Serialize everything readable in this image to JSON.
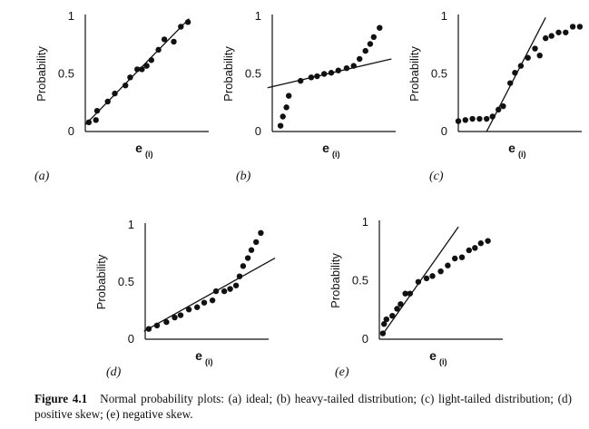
{
  "figure_caption": {
    "label": "Figure 4.1",
    "text": "Normal probability plots: (a) ideal; (b) heavy-tailed distribution; (c) light-tailed distribution; (d) positive skew; (e) negative skew."
  },
  "chart_data": [
    {
      "type": "scatter",
      "panel_label": "(a)",
      "ylabel": "Probability",
      "xlabel": "e",
      "xlabel_subscript": "(i)",
      "y_ticks": [
        "0",
        "0.5",
        "1"
      ],
      "ylim": [
        0,
        1
      ],
      "xlim": [
        0,
        1
      ],
      "points": [
        [
          0.03,
          0.08
        ],
        [
          0.09,
          0.1
        ],
        [
          0.1,
          0.18
        ],
        [
          0.19,
          0.26
        ],
        [
          0.25,
          0.33
        ],
        [
          0.34,
          0.4
        ],
        [
          0.38,
          0.47
        ],
        [
          0.44,
          0.54
        ],
        [
          0.48,
          0.54
        ],
        [
          0.52,
          0.57
        ],
        [
          0.56,
          0.62
        ],
        [
          0.62,
          0.71
        ],
        [
          0.67,
          0.8
        ],
        [
          0.75,
          0.78
        ],
        [
          0.81,
          0.91
        ],
        [
          0.87,
          0.95
        ]
      ],
      "line": [
        [
          0.0,
          0.06
        ],
        [
          0.88,
          0.98
        ]
      ]
    },
    {
      "type": "scatter",
      "panel_label": "(b)",
      "ylabel": "Probability",
      "xlabel": "e",
      "xlabel_subscript": "(i)",
      "y_ticks": [
        "0",
        "0.5",
        "1"
      ],
      "ylim": [
        0,
        1
      ],
      "xlim": [
        0,
        1
      ],
      "points": [
        [
          0.07,
          0.05
        ],
        [
          0.09,
          0.13
        ],
        [
          0.12,
          0.21
        ],
        [
          0.14,
          0.31
        ],
        [
          0.24,
          0.44
        ],
        [
          0.33,
          0.47
        ],
        [
          0.38,
          0.48
        ],
        [
          0.44,
          0.5
        ],
        [
          0.5,
          0.51
        ],
        [
          0.56,
          0.53
        ],
        [
          0.63,
          0.55
        ],
        [
          0.69,
          0.57
        ],
        [
          0.74,
          0.63
        ],
        [
          0.79,
          0.7
        ],
        [
          0.83,
          0.76
        ],
        [
          0.86,
          0.82
        ],
        [
          0.91,
          0.9
        ]
      ],
      "line": [
        [
          -0.04,
          0.38
        ],
        [
          1.01,
          0.63
        ]
      ]
    },
    {
      "type": "scatter",
      "panel_label": "(c)",
      "ylabel": "Probability",
      "xlabel": "e",
      "xlabel_subscript": "(i)",
      "y_ticks": [
        "0",
        "0.5",
        "1"
      ],
      "ylim": [
        0,
        1
      ],
      "xlim": [
        0,
        1
      ],
      "points": [
        [
          0.0,
          0.09
        ],
        [
          0.06,
          0.1
        ],
        [
          0.12,
          0.11
        ],
        [
          0.18,
          0.11
        ],
        [
          0.24,
          0.11
        ],
        [
          0.29,
          0.13
        ],
        [
          0.34,
          0.19
        ],
        [
          0.38,
          0.22
        ],
        [
          0.44,
          0.42
        ],
        [
          0.48,
          0.51
        ],
        [
          0.53,
          0.57
        ],
        [
          0.59,
          0.64
        ],
        [
          0.65,
          0.72
        ],
        [
          0.69,
          0.66
        ],
        [
          0.74,
          0.81
        ],
        [
          0.79,
          0.83
        ],
        [
          0.85,
          0.86
        ],
        [
          0.91,
          0.86
        ],
        [
          0.97,
          0.91
        ],
        [
          1.03,
          0.91
        ]
      ],
      "line": [
        [
          0.24,
          0.0
        ],
        [
          0.74,
          0.99
        ]
      ]
    },
    {
      "type": "scatter",
      "panel_label": "(d)",
      "ylabel": "Probability",
      "xlabel": "e",
      "xlabel_subscript": "(i)",
      "y_ticks": [
        "0",
        "0.5",
        "1"
      ],
      "ylim": [
        0,
        1
      ],
      "xlim": [
        0,
        1
      ],
      "points": [
        [
          0.03,
          0.09
        ],
        [
          0.1,
          0.12
        ],
        [
          0.18,
          0.15
        ],
        [
          0.25,
          0.19
        ],
        [
          0.3,
          0.21
        ],
        [
          0.37,
          0.26
        ],
        [
          0.44,
          0.28
        ],
        [
          0.5,
          0.32
        ],
        [
          0.57,
          0.34
        ],
        [
          0.6,
          0.42
        ],
        [
          0.67,
          0.42
        ],
        [
          0.72,
          0.44
        ],
        [
          0.77,
          0.47
        ],
        [
          0.8,
          0.55
        ],
        [
          0.83,
          0.64
        ],
        [
          0.87,
          0.71
        ],
        [
          0.9,
          0.78
        ],
        [
          0.94,
          0.85
        ],
        [
          0.98,
          0.93
        ]
      ],
      "line": [
        [
          -0.01,
          0.07
        ],
        [
          1.1,
          0.71
        ]
      ]
    },
    {
      "type": "scatter",
      "panel_label": "(e)",
      "ylabel": "Probability",
      "xlabel": "e",
      "xlabel_subscript": "(i)",
      "y_ticks": [
        "0",
        "0.5",
        "1"
      ],
      "ylim": [
        0,
        1
      ],
      "xlim": [
        0,
        1
      ],
      "points": [
        [
          0.03,
          0.05
        ],
        [
          0.04,
          0.13
        ],
        [
          0.06,
          0.17
        ],
        [
          0.11,
          0.2
        ],
        [
          0.15,
          0.26
        ],
        [
          0.18,
          0.3
        ],
        [
          0.22,
          0.39
        ],
        [
          0.26,
          0.39
        ],
        [
          0.33,
          0.49
        ],
        [
          0.4,
          0.52
        ],
        [
          0.45,
          0.54
        ],
        [
          0.52,
          0.58
        ],
        [
          0.58,
          0.63
        ],
        [
          0.64,
          0.69
        ],
        [
          0.7,
          0.7
        ],
        [
          0.76,
          0.76
        ],
        [
          0.81,
          0.78
        ],
        [
          0.86,
          0.82
        ],
        [
          0.92,
          0.84
        ]
      ],
      "line": [
        [
          0.02,
          0.03
        ],
        [
          0.67,
          0.96
        ]
      ]
    }
  ]
}
